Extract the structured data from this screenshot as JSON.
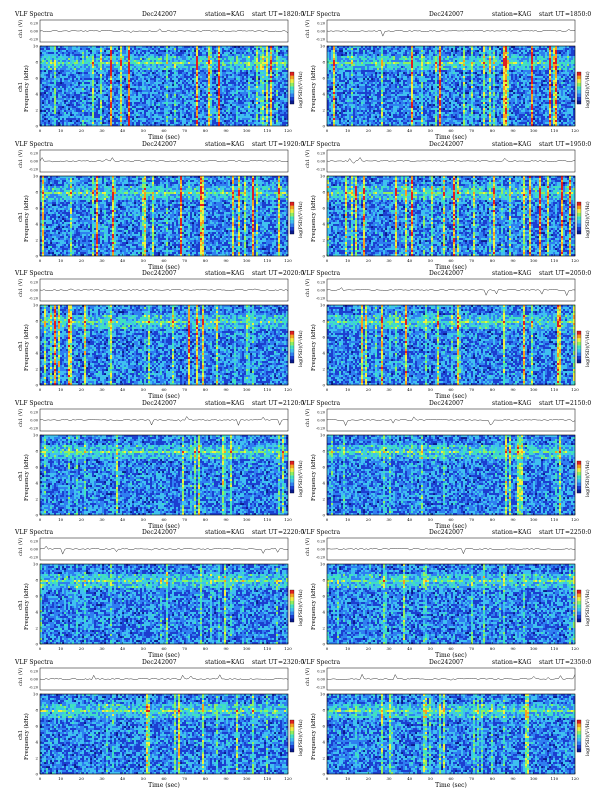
{
  "page": {
    "title_prefix": "VLF Spectra",
    "station": "station=KAG",
    "start_prefix": "start  UT",
    "cmap": [
      "#0a1a8c",
      "#1c3fd0",
      "#2f7ff0",
      "#3fc0f0",
      "#40e0c0",
      "#8ff060",
      "#f0f040",
      "#f5a020",
      "#e02020"
    ]
  },
  "chart_data": [
    {
      "type": "heatmap",
      "title": "VLF Spectra",
      "date": "Dec242007",
      "station": "station=KAG",
      "start_ut": "=1820:0",
      "ch_label": "ch1 (V)",
      "ch_ticks": [
        "0.20",
        "0.00",
        "-0.20"
      ],
      "ylabel": "Frequency  (kHz)",
      "ylabel2": "ch1",
      "yticks": [
        "10",
        "8",
        "6",
        "4",
        "2",
        "0"
      ],
      "xlabel": "Time  (sec)",
      "xticks": [
        "0",
        "10",
        "20",
        "30",
        "40",
        "50",
        "60",
        "70",
        "80",
        "90",
        "100",
        "110",
        "120"
      ],
      "xlim": [
        0,
        120
      ],
      "ylim": [
        0,
        10
      ],
      "cbar_label": "log(PSD)(V²/Hz)",
      "intensity": 1.0
    },
    {
      "type": "heatmap",
      "title": "VLF Spectra",
      "date": "Dec242007",
      "station": "station=KAG",
      "start_ut": "=1850:0",
      "ch_label": "ch1 (V)",
      "ch_ticks": [
        "0.20",
        "0.00",
        "-0.20"
      ],
      "ylabel": "Frequency  (kHz)",
      "ylabel2": "",
      "yticks": [
        "10",
        "8",
        "6",
        "4",
        "2",
        "0"
      ],
      "xlabel": "Time  (sec)",
      "xticks": [
        "0",
        "10",
        "20",
        "30",
        "40",
        "50",
        "60",
        "70",
        "80",
        "90",
        "100",
        "110",
        "120"
      ],
      "xlim": [
        0,
        120
      ],
      "ylim": [
        0,
        10
      ],
      "cbar_label": "log(PSD)(V²/Hz)",
      "intensity": 1.0
    },
    {
      "type": "heatmap",
      "title": "VLF Spectra",
      "date": "Dec242007",
      "station": "station=KAG",
      "start_ut": "=1920:0",
      "ch_label": "ch1 (V)",
      "ch_ticks": [
        "0.20",
        "0.00",
        "-0.20"
      ],
      "ylabel": "Frequency  (kHz)",
      "ylabel2": "ch1",
      "yticks": [
        "10",
        "8",
        "6",
        "4",
        "2",
        "0"
      ],
      "xlabel": "Time  (sec)",
      "xticks": [
        "0",
        "10",
        "20",
        "30",
        "40",
        "50",
        "60",
        "70",
        "80",
        "90",
        "100",
        "110",
        "120"
      ],
      "xlim": [
        0,
        120
      ],
      "ylim": [
        0,
        10
      ],
      "cbar_label": "log(PSD)(V²/Hz)",
      "intensity": 0.95
    },
    {
      "type": "heatmap",
      "title": "VLF Spectra",
      "date": "Dec242007",
      "station": "station=KAG",
      "start_ut": "=1950:0",
      "ch_label": "ch1 (V)",
      "ch_ticks": [
        "0.20",
        "0.00",
        "-0.20"
      ],
      "ylabel": "Frequency  (kHz)",
      "ylabel2": "",
      "yticks": [
        "10",
        "8",
        "6",
        "4",
        "2",
        "0"
      ],
      "xlabel": "Time  (sec)",
      "xticks": [
        "0",
        "10",
        "20",
        "30",
        "40",
        "50",
        "60",
        "70",
        "80",
        "90",
        "100",
        "110",
        "120"
      ],
      "xlim": [
        0,
        120
      ],
      "ylim": [
        0,
        10
      ],
      "cbar_label": "log(PSD)(V²/Hz)",
      "intensity": 0.95
    },
    {
      "type": "heatmap",
      "title": "VLF Spectra",
      "date": "Dec242007",
      "station": "station=KAG",
      "start_ut": "=2020:0",
      "ch_label": "ch1 (V)",
      "ch_ticks": [
        "0.20",
        "0.00",
        "-0.20"
      ],
      "ylabel": "Frequency  (kHz)",
      "ylabel2": "ch1",
      "yticks": [
        "10",
        "8",
        "6",
        "4",
        "2",
        "0"
      ],
      "xlabel": "Time  (sec)",
      "xticks": [
        "0",
        "10",
        "20",
        "30",
        "40",
        "50",
        "60",
        "70",
        "80",
        "90",
        "100",
        "110",
        "120"
      ],
      "xlim": [
        0,
        120
      ],
      "ylim": [
        0,
        10
      ],
      "cbar_label": "log(PSD)(V²/Hz)",
      "intensity": 0.9
    },
    {
      "type": "heatmap",
      "title": "VLF Spectra",
      "date": "Dec242007",
      "station": "station=KAG",
      "start_ut": "=2050:0",
      "ch_label": "ch1 (V)",
      "ch_ticks": [
        "0.20",
        "0.00",
        "-0.20"
      ],
      "ylabel": "Frequency  (kHz)",
      "ylabel2": "",
      "yticks": [
        "10",
        "8",
        "6",
        "4",
        "2",
        "0"
      ],
      "xlabel": "Time  (sec)",
      "xticks": [
        "0",
        "10",
        "20",
        "30",
        "40",
        "50",
        "60",
        "70",
        "80",
        "90",
        "100",
        "110",
        "120"
      ],
      "xlim": [
        0,
        120
      ],
      "ylim": [
        0,
        10
      ],
      "cbar_label": "log(PSD)(V²/Hz)",
      "intensity": 0.75
    },
    {
      "type": "heatmap",
      "title": "VLF Spectra",
      "date": "Dec242007",
      "station": "station=KAG",
      "start_ut": "=2120:0",
      "ch_label": "ch1 (V)",
      "ch_ticks": [
        "0.20",
        "0.00",
        "-0.20"
      ],
      "ylabel": "Frequency  (kHz)",
      "ylabel2": "ch1",
      "yticks": [
        "10",
        "8",
        "6",
        "4",
        "2",
        "0"
      ],
      "xlabel": "Time  (sec)",
      "xticks": [
        "0",
        "10",
        "20",
        "30",
        "40",
        "50",
        "60",
        "70",
        "80",
        "90",
        "100",
        "110",
        "120"
      ],
      "xlim": [
        0,
        120
      ],
      "ylim": [
        0,
        10
      ],
      "cbar_label": "log(PSD)(V²/Hz)",
      "intensity": 0.55
    },
    {
      "type": "heatmap",
      "title": "VLF Spectra",
      "date": "Dec242007",
      "station": "station=KAG",
      "start_ut": "=2150:0",
      "ch_label": "ch1 (V)",
      "ch_ticks": [
        "0.20",
        "0.00",
        "-0.20"
      ],
      "ylabel": "Frequency  (kHz)",
      "ylabel2": "",
      "yticks": [
        "10",
        "8",
        "6",
        "4",
        "2",
        "0"
      ],
      "xlabel": "Time  (sec)",
      "xticks": [
        "0",
        "10",
        "20",
        "30",
        "40",
        "50",
        "60",
        "70",
        "80",
        "90",
        "100",
        "110",
        "120"
      ],
      "xlim": [
        0,
        120
      ],
      "ylim": [
        0,
        10
      ],
      "cbar_label": "log(PSD)(V²/Hz)",
      "intensity": 0.5
    },
    {
      "type": "heatmap",
      "title": "VLF Spectra",
      "date": "Dec242007",
      "station": "station=KAG",
      "start_ut": "=2220:0",
      "ch_label": "ch1 (V)",
      "ch_ticks": [
        "0.20",
        "0.00",
        "-0.20"
      ],
      "ylabel": "Frequency  (kHz)",
      "ylabel2": "ch1",
      "yticks": [
        "10",
        "8",
        "6",
        "4",
        "2",
        "0"
      ],
      "xlabel": "Time  (sec)",
      "xticks": [
        "0",
        "10",
        "20",
        "30",
        "40",
        "50",
        "60",
        "70",
        "80",
        "90",
        "100",
        "110",
        "120"
      ],
      "xlim": [
        0,
        120
      ],
      "ylim": [
        0,
        10
      ],
      "cbar_label": "log(PSD)(V²/Hz)",
      "intensity": 0.35
    },
    {
      "type": "heatmap",
      "title": "VLF Spectra",
      "date": "Dec242007",
      "station": "station=KAG",
      "start_ut": "=2250:0",
      "ch_label": "ch1 (V)",
      "ch_ticks": [
        "0.20",
        "0.00",
        "-0.20"
      ],
      "ylabel": "Frequency  (kHz)",
      "ylabel2": "",
      "yticks": [
        "10",
        "8",
        "6",
        "4",
        "2",
        "0"
      ],
      "xlabel": "Time  (sec)",
      "xticks": [
        "0",
        "10",
        "20",
        "30",
        "40",
        "50",
        "60",
        "70",
        "80",
        "90",
        "100",
        "110",
        "120"
      ],
      "xlim": [
        0,
        120
      ],
      "ylim": [
        0,
        10
      ],
      "cbar_label": "log(PSD)(V²/Hz)",
      "intensity": 0.35
    },
    {
      "type": "heatmap",
      "title": "VLF Spectra",
      "date": "Dec242007",
      "station": "station=KAG",
      "start_ut": "=2320:0",
      "ch_label": "ch1 (V)",
      "ch_ticks": [
        "0.20",
        "0.00",
        "-0.20"
      ],
      "ylabel": "Frequency  (kHz)",
      "ylabel2": "ch1",
      "yticks": [
        "10",
        "8",
        "6",
        "4",
        "2",
        "0"
      ],
      "xlabel": "Time  (sec)",
      "xticks": [
        "0",
        "10",
        "20",
        "30",
        "40",
        "50",
        "60",
        "70",
        "80",
        "90",
        "100",
        "110",
        "120"
      ],
      "xlim": [
        0,
        120
      ],
      "ylim": [
        0,
        10
      ],
      "cbar_label": "log(PSD)(V²/Hz)",
      "intensity": 0.6
    },
    {
      "type": "heatmap",
      "title": "VLF Spectra",
      "date": "Dec242007",
      "station": "station=KAG",
      "start_ut": "=2350:0",
      "ch_label": "ch1 (V)",
      "ch_ticks": [
        "0.20",
        "0.00",
        "-0.20"
      ],
      "ylabel": "Frequency  (kHz)",
      "ylabel2": "",
      "yticks": [
        "10",
        "8",
        "6",
        "4",
        "2",
        "0"
      ],
      "xlabel": "Time  (sec)",
      "xticks": [
        "0",
        "10",
        "20",
        "30",
        "40",
        "50",
        "60",
        "70",
        "80",
        "90",
        "100",
        "110",
        "120"
      ],
      "xlim": [
        0,
        120
      ],
      "ylim": [
        0,
        10
      ],
      "cbar_label": "log(PSD)(V²/Hz)",
      "intensity": 0.4
    }
  ]
}
